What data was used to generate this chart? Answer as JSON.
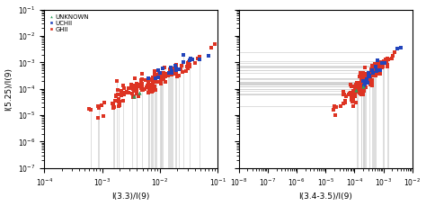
{
  "left_xlabel": "I(3.3)/I(9)",
  "right_xlabel": "I(3.4-3.5)/I(9)",
  "ylabel": "I(5.25)/I(9)",
  "xlim_left": [
    0.0001,
    0.1
  ],
  "xlim_right": [
    1e-08,
    0.01
  ],
  "ylim": [
    1e-07,
    0.1
  ],
  "legend_labels": [
    "UNKNOWN",
    "UCHII",
    "GHII"
  ],
  "legend_colors": [
    "#2ca05a",
    "#2244bb",
    "#dd3322"
  ],
  "background_color": "#ffffff",
  "error_line_color": "#d0d0d0",
  "seed": 42,
  "n_ghii": 160,
  "n_uchii": 22,
  "n_unknown": 2,
  "ms": 2.5
}
